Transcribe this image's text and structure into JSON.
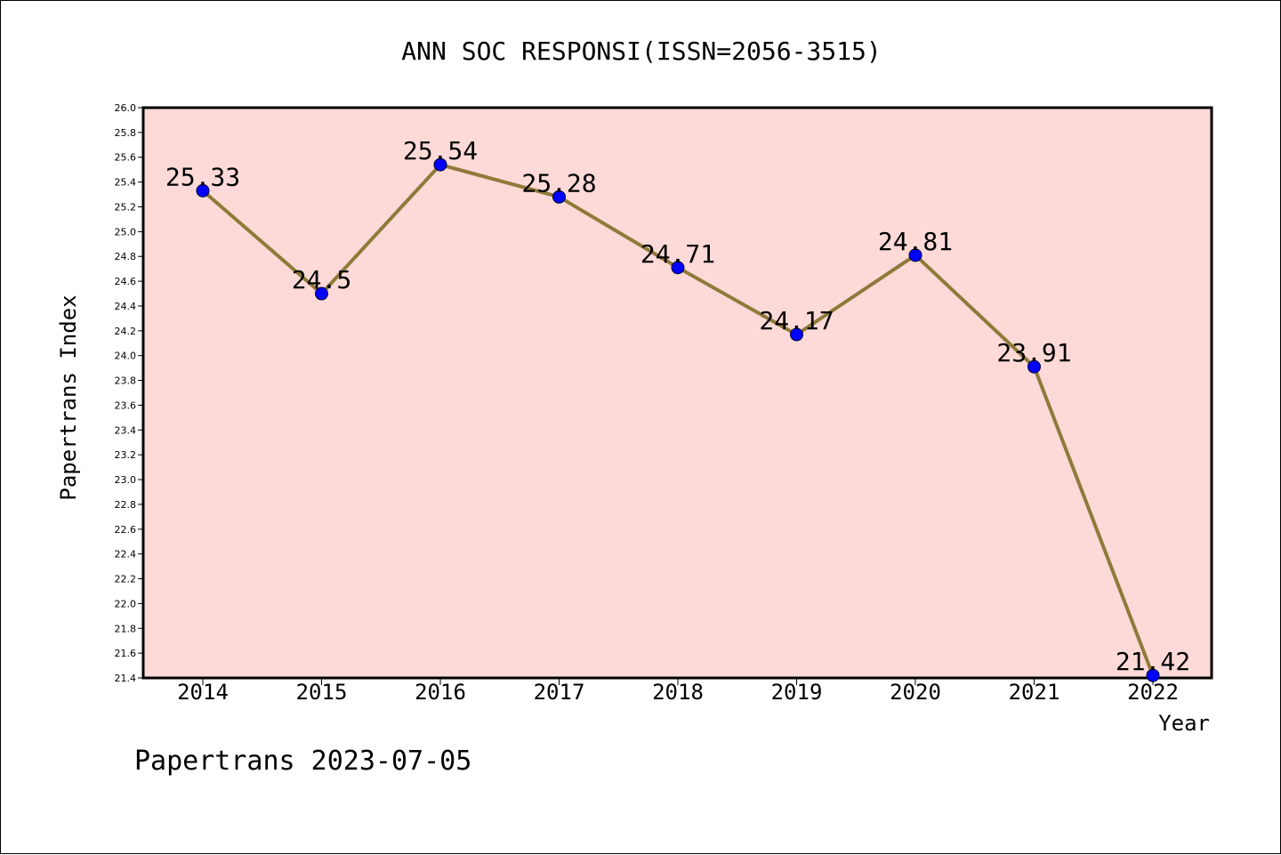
{
  "chart_data": {
    "type": "line",
    "title": "ANN SOC RESPONSI(ISSN=2056-3515)",
    "xlabel": "Year",
    "ylabel": "Papertrans Index",
    "footer": "Papertrans 2023-07-05",
    "x": [
      "2014",
      "2015",
      "2016",
      "2017",
      "2018",
      "2019",
      "2020",
      "2021",
      "2022"
    ],
    "values": [
      25.33,
      24.5,
      25.54,
      25.28,
      24.71,
      24.17,
      24.81,
      23.91,
      21.42
    ],
    "value_labels": [
      "25.33",
      "24.5",
      "25.54",
      "25.28",
      "24.71",
      "24.17",
      "24.81",
      "23.91",
      "21.42"
    ],
    "ylim": [
      21.4,
      26.0
    ],
    "yticks": [
      "21.4",
      "21.6",
      "21.8",
      "22.0",
      "22.2",
      "22.4",
      "22.6",
      "22.8",
      "23.0",
      "23.2",
      "23.4",
      "23.6",
      "23.8",
      "24.0",
      "24.2",
      "24.4",
      "24.6",
      "24.8",
      "25.0",
      "25.2",
      "25.4",
      "25.6",
      "25.8",
      "26.0"
    ],
    "grid": false,
    "colors": {
      "plot_background": "#fddad8",
      "line": "#8f7a3a",
      "marker": "#0000ff",
      "axis": "#000000"
    }
  }
}
